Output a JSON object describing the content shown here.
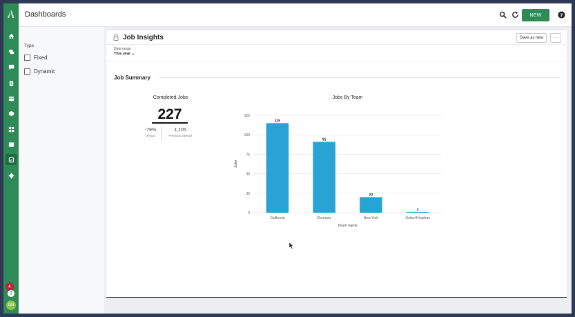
{
  "header": {
    "title": "Dashboards",
    "new_label": "NEW"
  },
  "rail": {
    "badge_count": "4",
    "help": "?",
    "avatar_initials": "GN"
  },
  "filters": {
    "label": "Type",
    "options": [
      "Fixed",
      "Dynamic"
    ]
  },
  "panel": {
    "title": "Job Insights",
    "save_label": "Save as new",
    "more_label": "···",
    "date_range_label": "Date range",
    "date_range_value": "This year ⌄",
    "section_title": "Job Summary"
  },
  "kpi": {
    "title": "Completed Jobs",
    "value": "227",
    "versus_value": "-79%",
    "versus_label": "Versus",
    "previous_value": "1,105",
    "previous_label": "Previous Interval"
  },
  "colors": {
    "brand": "#2e8b57",
    "bar": "#29a3d3"
  },
  "chart_data": {
    "type": "bar",
    "title": "Jobs By Team",
    "xlabel": "Team name",
    "ylabel": "Jobs",
    "categories": [
      "California",
      "Germany",
      "New York",
      "United Kingdom"
    ],
    "values": [
      115,
      91,
      20,
      1
    ],
    "ylim": [
      0,
      125
    ],
    "yticks": [
      0,
      25,
      50,
      75,
      100,
      125
    ],
    "grid": true,
    "data_labels": true
  }
}
